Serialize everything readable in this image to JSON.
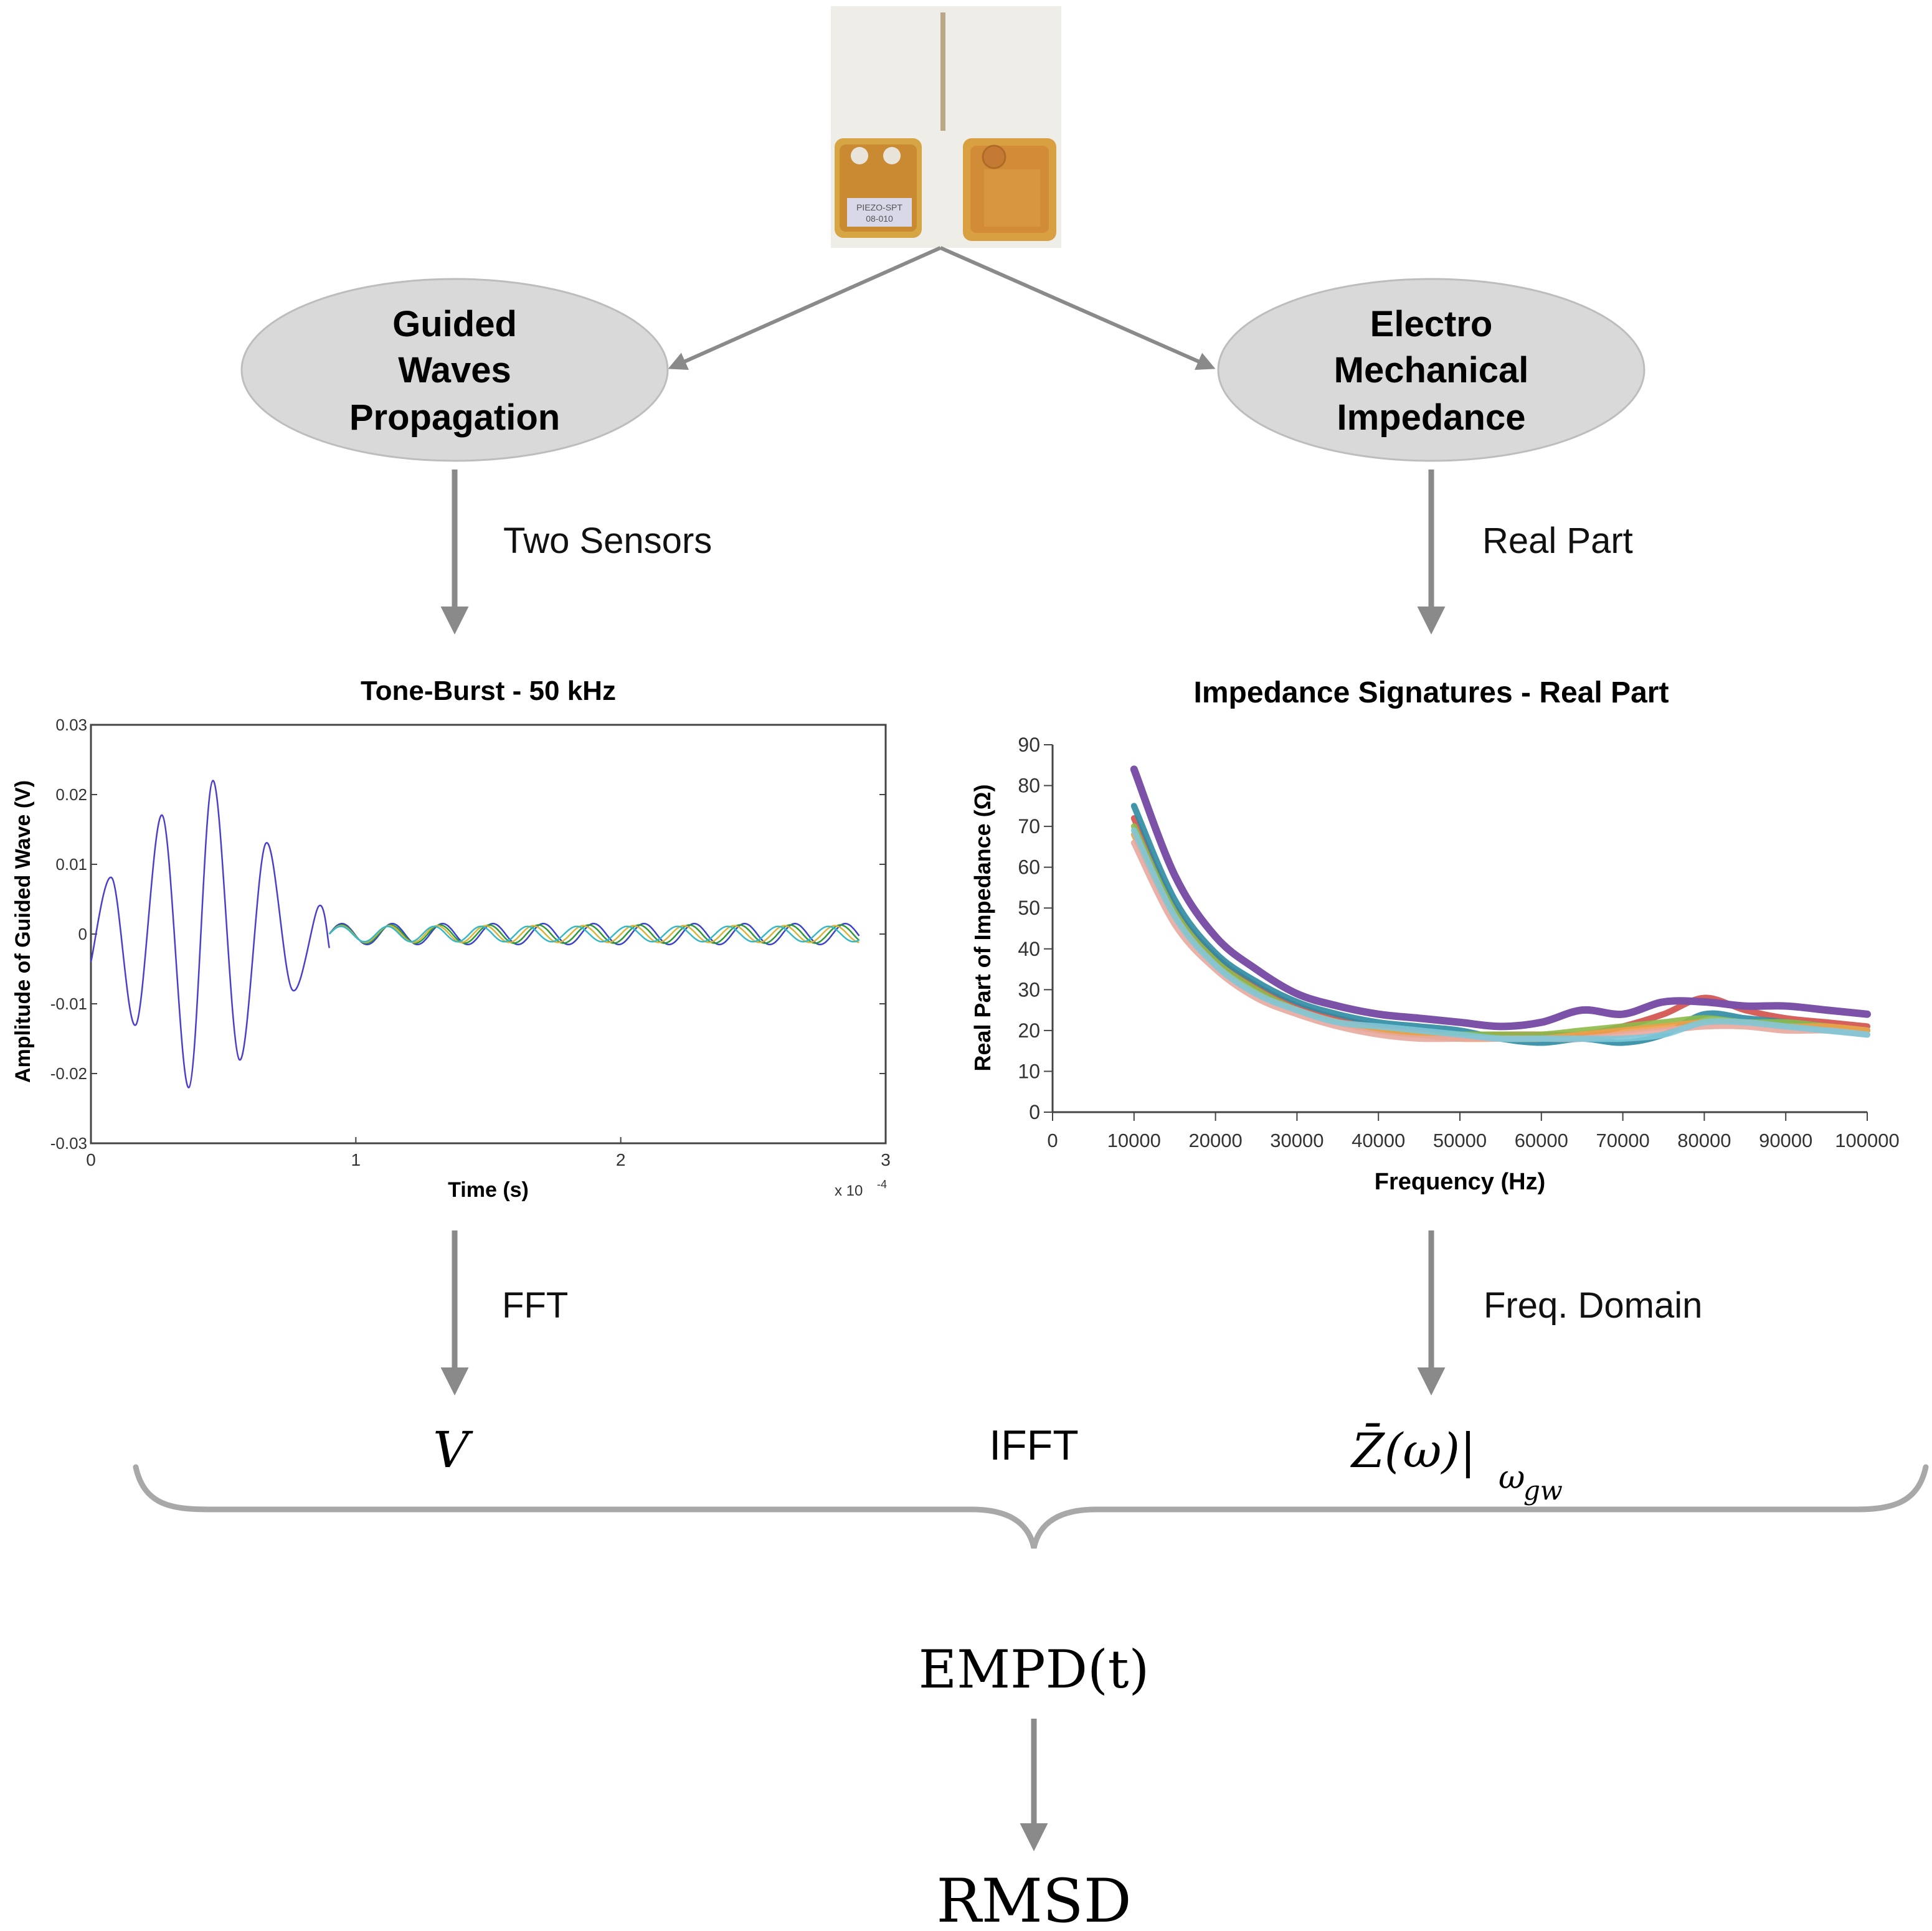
{
  "photo": {
    "sensor_left_label": "PIEZO-SPT\n08-010"
  },
  "ellipses": {
    "left": [
      "Guided",
      "Waves",
      "Propagation"
    ],
    "right": [
      "Electro",
      "Mechanical",
      "Impedance"
    ]
  },
  "arrow_labels": {
    "left_top": "Two Sensors",
    "right_top": "Real Part",
    "left_bottom": "FFT",
    "right_bottom": "Freq. Domain"
  },
  "symbols": {
    "left": "V",
    "middle": "IFFT",
    "right_main": "Z̄(ω)|",
    "right_sub": "ω",
    "right_subsub": "gw"
  },
  "outputs": {
    "empd": "EMPD(t)",
    "rmsd": "RMSD"
  },
  "chart_data": [
    {
      "type": "line",
      "title": "Tone-Burst - 50 kHz",
      "xlabel": "Time (s)",
      "ylabel": "Amplitude of Guided Wave (V)",
      "x_multiplier": "x 10",
      "x_multiplier_exp": "-4",
      "xlim": [
        0,
        3
      ],
      "ylim": [
        -0.03,
        0.03
      ],
      "xticks": [
        "0",
        "1",
        "2",
        "3"
      ],
      "yticks": [
        "0.03",
        "0.02",
        "0.01",
        "0",
        "-0.01",
        "-0.02",
        "-0.03"
      ],
      "burst": {
        "x": [
          0,
          0.08,
          0.17,
          0.27,
          0.37,
          0.46,
          0.56,
          0.66,
          0.76,
          0.86,
          0.9
        ],
        "y": [
          -0.004,
          0.008,
          -0.013,
          0.017,
          -0.022,
          0.022,
          -0.018,
          0.013,
          -0.008,
          0.004,
          -0.002
        ],
        "color": "#4a3fc8"
      },
      "tail_series": [
        {
          "color": "#3a44c8",
          "amplitude": 0.0015,
          "phase": 0.0
        },
        {
          "color": "#2a9a3a",
          "amplitude": 0.0013,
          "phase": 0.6
        },
        {
          "color": "#d9b43a",
          "amplitude": 0.0012,
          "phase": 1.3
        },
        {
          "color": "#34b8c8",
          "amplitude": 0.0011,
          "phase": 2.1
        }
      ],
      "tail_xlim": [
        0.9,
        2.9
      ]
    },
    {
      "type": "line",
      "title": "Impedance Signatures - Real Part",
      "xlabel": "Frequency (Hz)",
      "ylabel": "Real Part of Impedance (Ω)",
      "xlim": [
        0,
        100000
      ],
      "ylim": [
        0,
        90
      ],
      "xticks": [
        "0",
        "10000",
        "20000",
        "30000",
        "40000",
        "50000",
        "60000",
        "70000",
        "80000",
        "90000",
        "100000"
      ],
      "yticks": [
        "90",
        "80",
        "70",
        "60",
        "50",
        "40",
        "30",
        "20",
        "10",
        "0"
      ],
      "x": [
        10000,
        15000,
        20000,
        25000,
        30000,
        35000,
        40000,
        45000,
        50000,
        55000,
        60000,
        65000,
        70000,
        75000,
        80000,
        85000,
        90000,
        95000,
        100000
      ],
      "series": [
        {
          "color": "#7b52a8",
          "values": [
            84,
            58,
            43,
            35,
            29,
            26,
            24,
            23,
            22,
            21,
            22,
            25,
            24,
            27,
            27,
            26,
            26,
            25,
            24
          ]
        },
        {
          "color": "#d1504a",
          "values": [
            72,
            50,
            38,
            31,
            26,
            23,
            21,
            20,
            19,
            19,
            19,
            19,
            21,
            24,
            28,
            25,
            23,
            22,
            21
          ]
        },
        {
          "color": "#2e8ba3",
          "values": [
            75,
            52,
            39,
            32,
            27,
            24,
            22,
            21,
            20,
            18,
            17,
            18,
            17,
            19,
            24,
            23,
            22,
            21,
            20
          ]
        },
        {
          "color": "#8dba4a",
          "values": [
            70,
            49,
            37,
            30,
            25,
            22,
            20,
            19,
            19,
            19,
            19,
            20,
            21,
            22,
            23,
            22,
            22,
            21,
            20
          ]
        },
        {
          "color": "#f0a04a",
          "values": [
            68,
            48,
            36,
            29,
            25,
            22,
            20,
            19,
            18,
            18,
            18,
            19,
            20,
            21,
            22,
            22,
            21,
            21,
            20
          ]
        },
        {
          "color": "#e8a8a0",
          "values": [
            66,
            46,
            35,
            28,
            24,
            21,
            19,
            18,
            18,
            18,
            18,
            18,
            19,
            20,
            21,
            21,
            20,
            20,
            19
          ]
        },
        {
          "color": "#7ec8d8",
          "values": [
            69,
            48,
            36,
            29,
            25,
            22,
            21,
            20,
            19,
            18,
            18,
            18,
            18,
            19,
            22,
            22,
            21,
            20,
            19
          ]
        }
      ]
    }
  ]
}
